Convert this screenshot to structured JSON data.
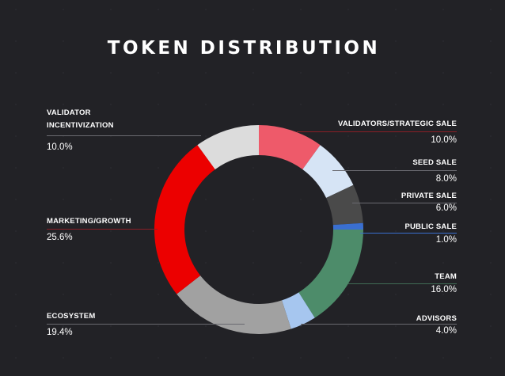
{
  "chart_data": {
    "type": "pie",
    "style": "donut",
    "title": "TOKEN DISTRIBUTION",
    "slices": [
      {
        "name": "VALIDATORS/STRATEGIC SALE",
        "value": 10.0,
        "value_label": "10.0%",
        "color": "#ee5a6a"
      },
      {
        "name": "SEED SALE",
        "value": 8.0,
        "value_label": "8.0%",
        "color": "#d6e4f5"
      },
      {
        "name": "PRIVATE SALE",
        "value": 6.0,
        "value_label": "6.0%",
        "color": "#4a4a4a"
      },
      {
        "name": "PUBLIC SALE",
        "value": 1.0,
        "value_label": "1.0%",
        "color": "#3a6fd0"
      },
      {
        "name": "TEAM",
        "value": 16.0,
        "value_label": "16.0%",
        "color": "#4d8c6a"
      },
      {
        "name": "ADVISORS",
        "value": 4.0,
        "value_label": "4.0%",
        "color": "#a6c6ef"
      },
      {
        "name": "ECOSYSTEM",
        "value": 19.4,
        "value_label": "19.4%",
        "color": "#a1a1a1"
      },
      {
        "name": "MARKETING/GROWTH",
        "value": 25.6,
        "value_label": "25.6%",
        "color": "#ec0000"
      },
      {
        "name": "VALIDATOR INCENTIVIZATION",
        "value": 10.0,
        "value_label": "10.0%",
        "color": "#dcdcdc"
      }
    ],
    "legend": "callout labels around the ring"
  },
  "labels": {
    "validator_incentivization_line1": "VALIDATOR",
    "validator_incentivization_line2": "INCENTIVIZATION"
  },
  "colors": {
    "background": "#222226",
    "rule_red": "#8a1e26",
    "rule_gray": "#6a6a70",
    "rule_blue": "#3a6fd0",
    "rule_green": "#3f6b55"
  }
}
